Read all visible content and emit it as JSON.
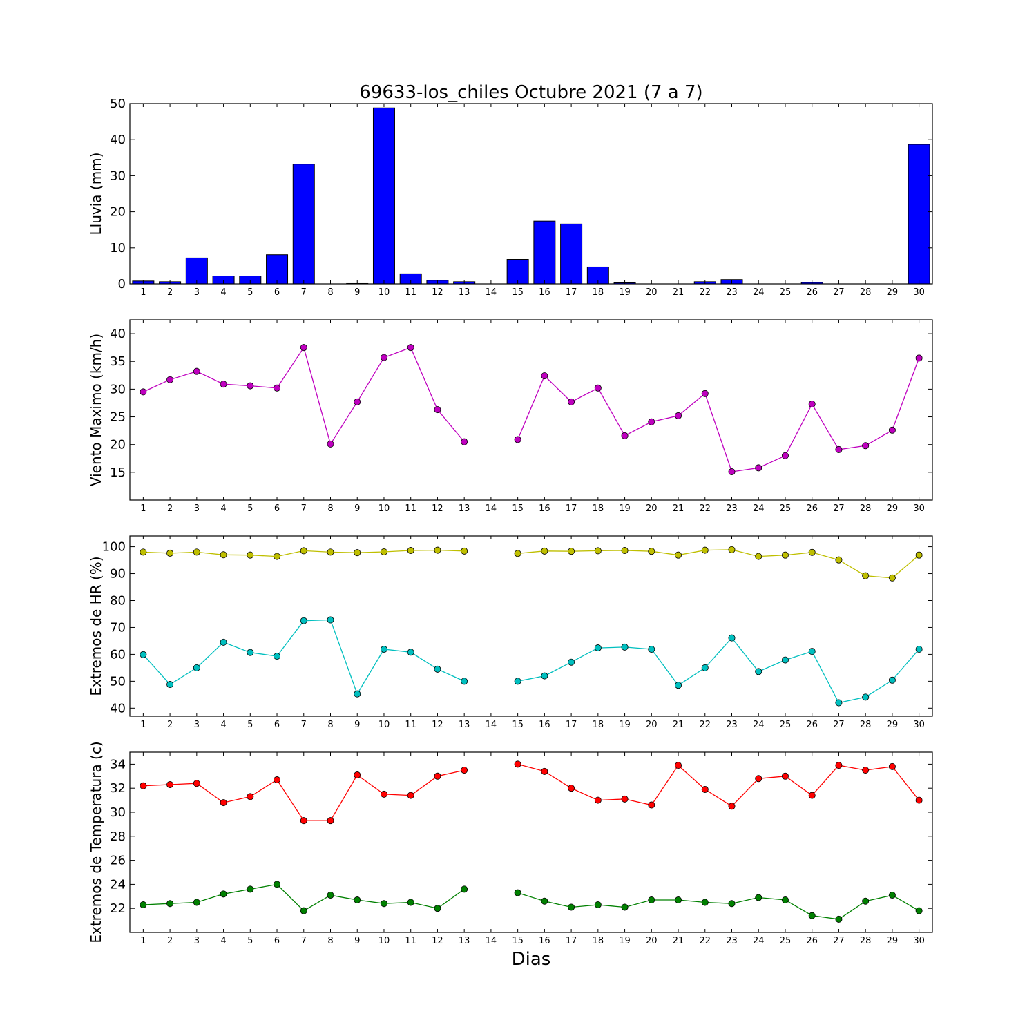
{
  "figure": {
    "title": "69633-los_chiles Octubre 2021  (7 a 7)",
    "xlabel": "Dias"
  },
  "chart_data": [
    {
      "type": "bar",
      "ylabel": "Lluvia (mm)",
      "ylim": [
        0,
        50
      ],
      "yticks": [
        0,
        10,
        20,
        30,
        40,
        50
      ],
      "categories": [
        "1",
        "2",
        "3",
        "4",
        "5",
        "6",
        "7",
        "8",
        "9",
        "10",
        "11",
        "12",
        "13",
        "14",
        "15",
        "16",
        "17",
        "18",
        "19",
        "20",
        "21",
        "22",
        "23",
        "24",
        "25",
        "26",
        "27",
        "28",
        "29",
        "30"
      ],
      "values": [
        0.8,
        0.6,
        7.2,
        2.2,
        2.2,
        8.1,
        33.2,
        0,
        0.1,
        48.8,
        2.8,
        1.0,
        0.6,
        null,
        6.8,
        17.4,
        16.6,
        4.7,
        0.3,
        0,
        0,
        0.6,
        1.2,
        0,
        0,
        0.4,
        0,
        0,
        0,
        38.7
      ],
      "color": "#0000ff",
      "grid": false
    },
    {
      "type": "line",
      "ylabel": "Viento Maximo (km/h)",
      "ylim": [
        10,
        42.5
      ],
      "yticks": [
        15,
        20,
        25,
        30,
        35,
        40
      ],
      "categories": [
        "1",
        "2",
        "3",
        "4",
        "5",
        "6",
        "7",
        "8",
        "9",
        "10",
        "11",
        "12",
        "13",
        "14",
        "15",
        "16",
        "17",
        "18",
        "19",
        "20",
        "21",
        "22",
        "23",
        "24",
        "25",
        "26",
        "27",
        "28",
        "29",
        "30"
      ],
      "series": [
        {
          "color": "#bf00bf",
          "values": [
            29.5,
            31.7,
            33.2,
            30.9,
            30.6,
            30.2,
            37.5,
            20.1,
            27.7,
            35.7,
            37.5,
            26.3,
            20.5,
            null,
            20.9,
            32.4,
            27.7,
            30.2,
            21.6,
            24.1,
            25.2,
            29.2,
            15.1,
            15.8,
            18.0,
            27.3,
            19.1,
            19.8,
            22.6,
            35.6
          ]
        }
      ],
      "grid": false
    },
    {
      "type": "line",
      "ylabel": "Extremos de HR (%)",
      "ylim": [
        37,
        104
      ],
      "yticks": [
        40,
        50,
        60,
        70,
        80,
        90,
        100
      ],
      "categories": [
        "1",
        "2",
        "3",
        "4",
        "5",
        "6",
        "7",
        "8",
        "9",
        "10",
        "11",
        "12",
        "13",
        "14",
        "15",
        "16",
        "17",
        "18",
        "19",
        "20",
        "21",
        "22",
        "23",
        "24",
        "25",
        "26",
        "27",
        "28",
        "29",
        "30"
      ],
      "series": [
        {
          "color": "#bfbf00",
          "values": [
            98.0,
            97.6,
            98.0,
            97.0,
            96.9,
            96.4,
            98.5,
            98.0,
            97.8,
            98.1,
            98.6,
            98.7,
            98.4,
            null,
            97.5,
            98.4,
            98.3,
            98.5,
            98.6,
            98.3,
            96.9,
            98.7,
            98.9,
            96.4,
            96.9,
            97.9,
            95.1,
            89.2,
            88.4,
            96.9
          ]
        },
        {
          "color": "#00bfbf",
          "values": [
            59.9,
            48.8,
            55.0,
            64.5,
            60.7,
            59.3,
            72.5,
            72.8,
            45.3,
            61.9,
            60.8,
            54.5,
            50.0,
            null,
            50.0,
            52.0,
            57.1,
            62.4,
            62.7,
            61.9,
            48.5,
            55.0,
            66.1,
            53.6,
            57.9,
            61.1,
            42.0,
            44.1,
            50.4,
            61.9
          ]
        }
      ],
      "grid": false
    },
    {
      "type": "line",
      "ylabel": "Extremos de Temperatura (c)",
      "ylim": [
        20,
        35
      ],
      "yticks": [
        22,
        24,
        26,
        28,
        30,
        32,
        34
      ],
      "categories": [
        "1",
        "2",
        "3",
        "4",
        "5",
        "6",
        "7",
        "8",
        "9",
        "10",
        "11",
        "12",
        "13",
        "14",
        "15",
        "16",
        "17",
        "18",
        "19",
        "20",
        "21",
        "22",
        "23",
        "24",
        "25",
        "26",
        "27",
        "28",
        "29",
        "30"
      ],
      "series": [
        {
          "color": "#ff0000",
          "values": [
            32.2,
            32.3,
            32.4,
            30.8,
            31.3,
            32.7,
            29.3,
            29.3,
            33.1,
            31.5,
            31.4,
            33.0,
            33.5,
            null,
            34.0,
            33.4,
            32.0,
            31.0,
            31.1,
            30.6,
            33.9,
            31.9,
            30.5,
            32.8,
            33.0,
            31.4,
            33.9,
            33.5,
            33.8,
            31.0
          ]
        },
        {
          "color": "#008000",
          "values": [
            22.3,
            22.4,
            22.5,
            23.2,
            23.6,
            24.0,
            21.8,
            23.1,
            22.7,
            22.4,
            22.5,
            22.0,
            23.6,
            null,
            23.3,
            22.6,
            22.1,
            22.3,
            22.1,
            22.7,
            22.7,
            22.5,
            22.4,
            22.9,
            22.7,
            21.4,
            21.1,
            22.6,
            23.1,
            21.8
          ]
        }
      ],
      "grid": false
    }
  ]
}
